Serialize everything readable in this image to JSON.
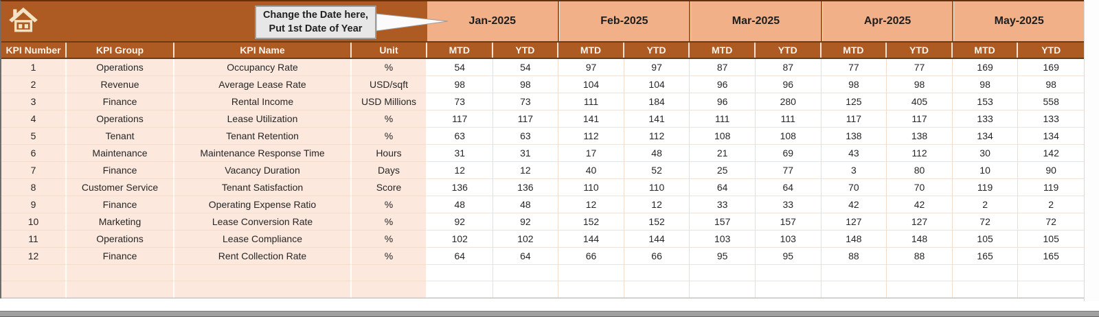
{
  "callout": {
    "line1": "Change the Date here,",
    "line2": "Put 1st Date of Year"
  },
  "months": [
    "Jan-2025",
    "Feb-2025",
    "Mar-2025",
    "Apr-2025",
    "May-2025"
  ],
  "sub_headers": {
    "mtd": "MTD",
    "ytd": "YTD"
  },
  "left_headers": [
    "KPI Number",
    "KPI Group",
    "KPI Name",
    "Unit"
  ],
  "rows": [
    {
      "num": "1",
      "group": "Operations",
      "name": "Occupancy Rate",
      "unit": "%",
      "values": [
        54,
        54,
        97,
        97,
        87,
        87,
        77,
        77,
        169,
        169
      ]
    },
    {
      "num": "2",
      "group": "Revenue",
      "name": "Average Lease Rate",
      "unit": "USD/sqft",
      "values": [
        98,
        98,
        104,
        104,
        96,
        96,
        98,
        98,
        98,
        98
      ]
    },
    {
      "num": "3",
      "group": "Finance",
      "name": "Rental Income",
      "unit": "USD Millions",
      "values": [
        73,
        73,
        111,
        184,
        96,
        280,
        125,
        405,
        153,
        558
      ]
    },
    {
      "num": "4",
      "group": "Operations",
      "name": "Lease Utilization",
      "unit": "%",
      "values": [
        117,
        117,
        141,
        141,
        111,
        111,
        117,
        117,
        133,
        133
      ]
    },
    {
      "num": "5",
      "group": "Tenant",
      "name": "Tenant Retention",
      "unit": "%",
      "values": [
        63,
        63,
        112,
        112,
        108,
        108,
        138,
        138,
        134,
        134
      ]
    },
    {
      "num": "6",
      "group": "Maintenance",
      "name": "Maintenance Response Time",
      "unit": "Hours",
      "values": [
        31,
        31,
        17,
        48,
        21,
        69,
        43,
        112,
        30,
        142
      ]
    },
    {
      "num": "7",
      "group": "Finance",
      "name": "Vacancy Duration",
      "unit": "Days",
      "values": [
        12,
        12,
        40,
        52,
        25,
        77,
        3,
        80,
        10,
        90
      ]
    },
    {
      "num": "8",
      "group": "Customer Service",
      "name": "Tenant Satisfaction",
      "unit": "Score",
      "values": [
        136,
        136,
        110,
        110,
        64,
        64,
        70,
        70,
        119,
        119
      ]
    },
    {
      "num": "9",
      "group": "Finance",
      "name": "Operating Expense Ratio",
      "unit": "%",
      "values": [
        48,
        48,
        12,
        12,
        33,
        33,
        42,
        42,
        2,
        2
      ]
    },
    {
      "num": "10",
      "group": "Marketing",
      "name": "Lease Conversion Rate",
      "unit": "%",
      "values": [
        92,
        92,
        152,
        152,
        157,
        157,
        127,
        127,
        72,
        72
      ]
    },
    {
      "num": "11",
      "group": "Operations",
      "name": "Lease Compliance",
      "unit": "%",
      "values": [
        102,
        102,
        144,
        144,
        103,
        103,
        148,
        148,
        105,
        105
      ]
    },
    {
      "num": "12",
      "group": "Finance",
      "name": "Rent Collection Rate",
      "unit": "%",
      "values": [
        64,
        64,
        66,
        66,
        95,
        95,
        88,
        88,
        165,
        165
      ]
    }
  ],
  "empty_row_count": 2,
  "icons": {
    "home": "home-icon"
  },
  "colors": {
    "header_dark_orange": "#AE5A23",
    "month_band_peach": "#F1B087",
    "row_band_peach": "#FCE8DD",
    "callout_gray": "#E7E7E7",
    "header_text": "#FDF4EC",
    "cell_text": "#262626",
    "home_icon_cream": "#F2E3C4"
  }
}
